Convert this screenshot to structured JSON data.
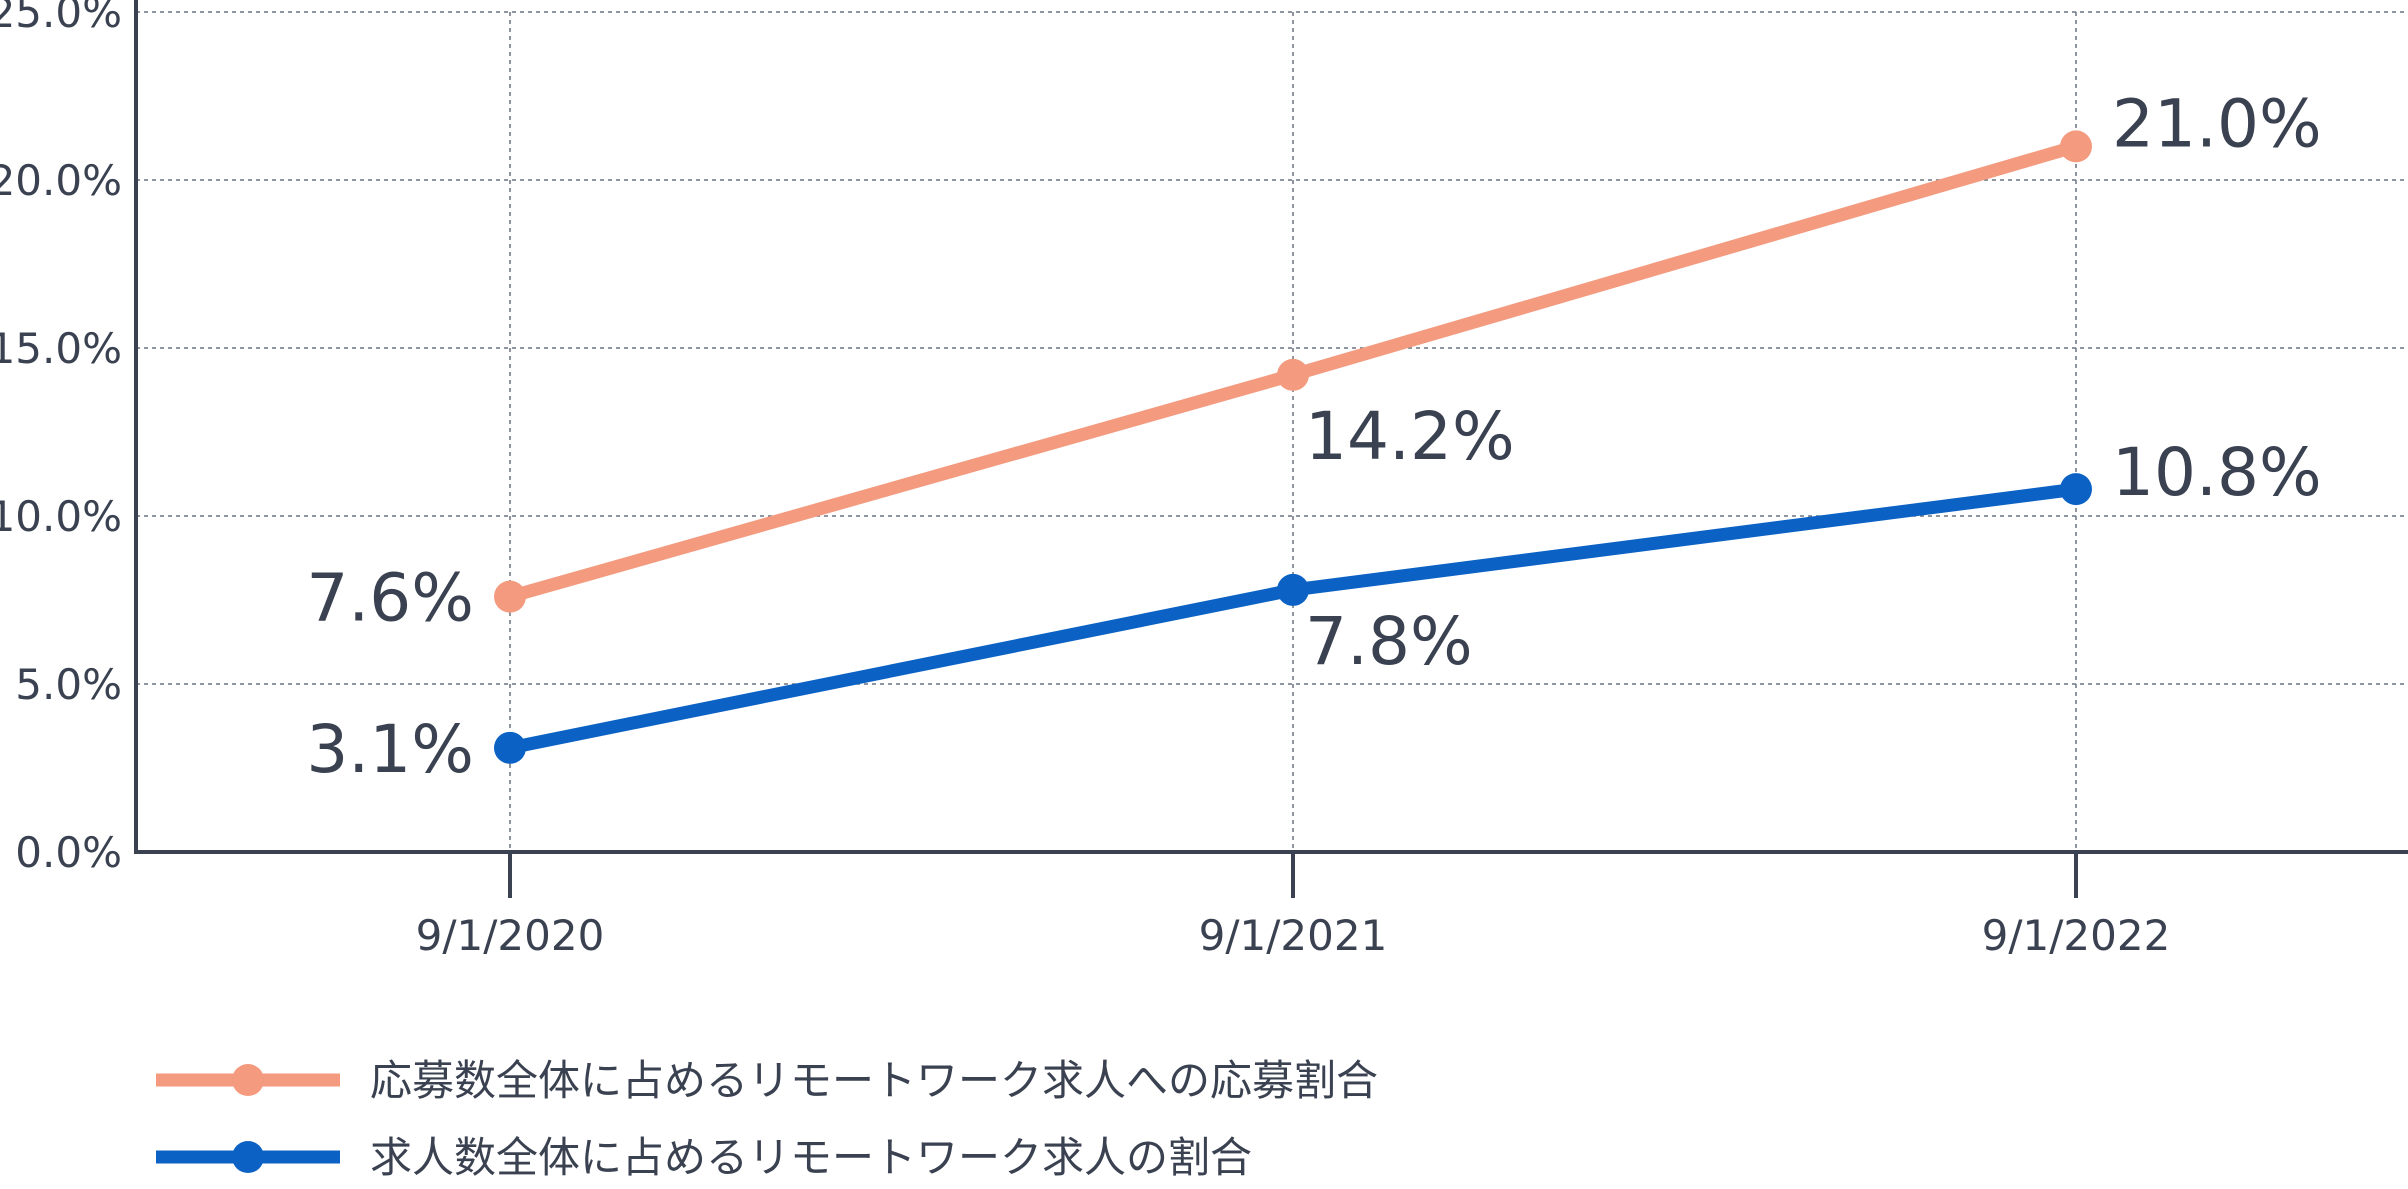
{
  "chart_data": {
    "type": "line",
    "categories": [
      "9/1/2020",
      "9/1/2021",
      "9/1/2022"
    ],
    "y_ticks": [
      "0.0%",
      "5.0%",
      "10.0%",
      "15.0%",
      "20.0%",
      "25.0%"
    ],
    "ylim": [
      0,
      25
    ],
    "grid": true,
    "legend_position": "bottom-left",
    "series": [
      {
        "name": "応募数全体に占めるリモートワーク求人への応募割合",
        "color": "#f39a7f",
        "values": [
          7.6,
          14.2,
          21.0
        ],
        "labels": [
          "7.6%",
          "14.2%",
          "21.0%"
        ]
      },
      {
        "name": "求人数全体に占めるリモートワーク求人の割合",
        "color": "#0b62c4",
        "values": [
          3.1,
          7.8,
          10.8
        ],
        "labels": [
          "3.1%",
          "7.8%",
          "10.8%"
        ]
      }
    ]
  },
  "colors": {
    "axis": "#3a4150",
    "grid": "#6b7380",
    "text": "#3a4150"
  }
}
